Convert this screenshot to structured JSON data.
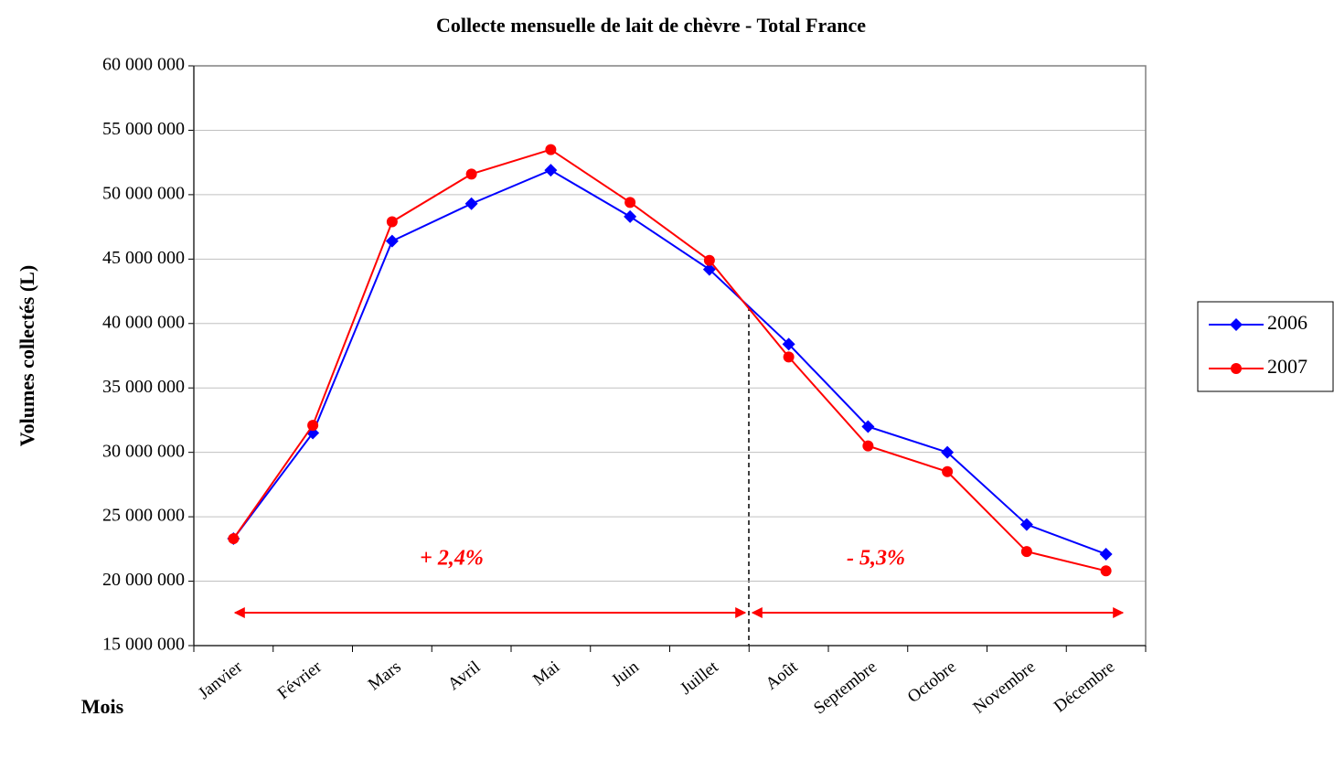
{
  "chart_data": {
    "type": "line",
    "title": "Collecte mensuelle de lait de chèvre - Total France",
    "x_label": "Mois",
    "y_label": "Volumes collectés (L)",
    "categories": [
      "Janvier",
      "Février",
      "Mars",
      "Avril",
      "Mai",
      "Juin",
      "Juillet",
      "Août",
      "Septembre",
      "Octobre",
      "Novembre",
      "Décembre"
    ],
    "series": [
      {
        "name": "2006",
        "color": "#0000ff",
        "marker": "diamond",
        "values": [
          23300000,
          31500000,
          46400000,
          49300000,
          51900000,
          48300000,
          44200000,
          38400000,
          32000000,
          30000000,
          24400000,
          22100000
        ]
      },
      {
        "name": "2007",
        "color": "#ff0000",
        "marker": "circle",
        "values": [
          23300000,
          32100000,
          47900000,
          51600000,
          53500000,
          49400000,
          44900000,
          37400000,
          30500000,
          28500000,
          22300000,
          20800000
        ]
      }
    ],
    "ylim": [
      15000000,
      60000000
    ],
    "yticks": [
      {
        "value": 15000000,
        "label": "15 000 000"
      },
      {
        "value": 20000000,
        "label": "20 000 000"
      },
      {
        "value": 25000000,
        "label": "25 000 000"
      },
      {
        "value": 30000000,
        "label": "30 000 000"
      },
      {
        "value": 35000000,
        "label": "35 000 000"
      },
      {
        "value": 40000000,
        "label": "40 000 000"
      },
      {
        "value": 45000000,
        "label": "45 000 000"
      },
      {
        "value": 50000000,
        "label": "50 000 000"
      },
      {
        "value": 55000000,
        "label": "55 000 000"
      },
      {
        "value": 60000000,
        "label": "60 000 000"
      }
    ],
    "grid": true,
    "legend": "right",
    "annotations": [
      "+ 2,4%",
      "- 5,3%"
    ]
  }
}
